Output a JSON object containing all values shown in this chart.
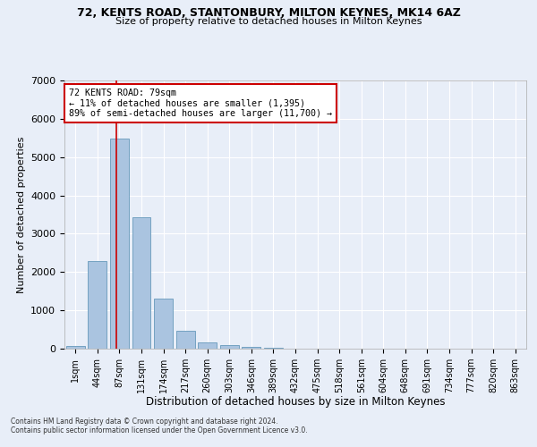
{
  "title1": "72, KENTS ROAD, STANTONBURY, MILTON KEYNES, MK14 6AZ",
  "title2": "Size of property relative to detached houses in Milton Keynes",
  "xlabel": "Distribution of detached houses by size in Milton Keynes",
  "ylabel": "Number of detached properties",
  "bar_labels": [
    "1sqm",
    "44sqm",
    "87sqm",
    "131sqm",
    "174sqm",
    "217sqm",
    "260sqm",
    "303sqm",
    "346sqm",
    "389sqm",
    "432sqm",
    "475sqm",
    "518sqm",
    "561sqm",
    "604sqm",
    "648sqm",
    "691sqm",
    "734sqm",
    "777sqm",
    "820sqm",
    "863sqm"
  ],
  "bar_values": [
    80,
    2280,
    5480,
    3430,
    1310,
    470,
    155,
    90,
    55,
    35,
    0,
    0,
    0,
    0,
    0,
    0,
    0,
    0,
    0,
    0,
    0
  ],
  "bar_color": "#aac4e0",
  "bar_edge_color": "#6699bb",
  "background_color": "#e8eef8",
  "grid_color": "#ffffff",
  "red_line_x": 1.85,
  "annotation_text": "72 KENTS ROAD: 79sqm\n← 11% of detached houses are smaller (1,395)\n89% of semi-detached houses are larger (11,700) →",
  "annotation_box_color": "#ffffff",
  "annotation_box_edge": "#cc0000",
  "red_line_color": "#cc0000",
  "ylim": [
    0,
    7000
  ],
  "yticks": [
    0,
    1000,
    2000,
    3000,
    4000,
    5000,
    6000,
    7000
  ],
  "footer1": "Contains HM Land Registry data © Crown copyright and database right 2024.",
  "footer2": "Contains public sector information licensed under the Open Government Licence v3.0."
}
